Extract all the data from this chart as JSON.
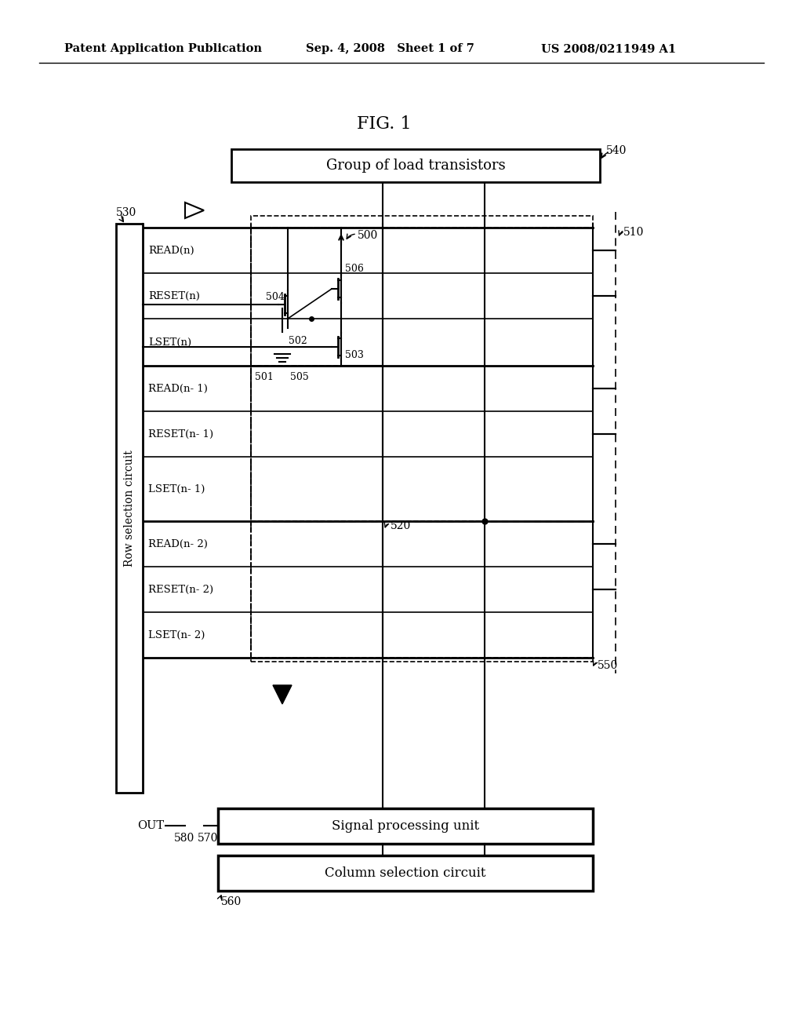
{
  "bg_color": "#ffffff",
  "header_left": "Patent Application Publication",
  "header_mid": "Sep. 4, 2008   Sheet 1 of 7",
  "header_right": "US 2008/0211949 A1",
  "fig_title": "FIG. 1",
  "load_transistors_label": "Group of load transistors",
  "signal_processing_label": "Signal processing unit",
  "column_selection_label": "Column selection circuit",
  "row_selection_label": "Row selection circuit",
  "out_label": "OUT",
  "row_labels": [
    "READ(n)",
    "RESET(n)",
    "LSET(n)",
    "READ(n- 1)",
    "RESET(n- 1)",
    "LSET(n- 1)",
    "READ(n- 2)",
    "RESET(n- 2)",
    "LSET(n- 2)"
  ],
  "lbl_540": "540",
  "lbl_530": "530",
  "lbl_500": "500",
  "lbl_510": "510",
  "lbl_520": "520",
  "lbl_550": "550",
  "lbl_560": "560",
  "lbl_570": "570",
  "lbl_580": "580",
  "lbl_501": "501",
  "lbl_502": "502",
  "lbl_503": "503",
  "lbl_504": "504",
  "lbl_505": "505",
  "lbl_506": "506"
}
